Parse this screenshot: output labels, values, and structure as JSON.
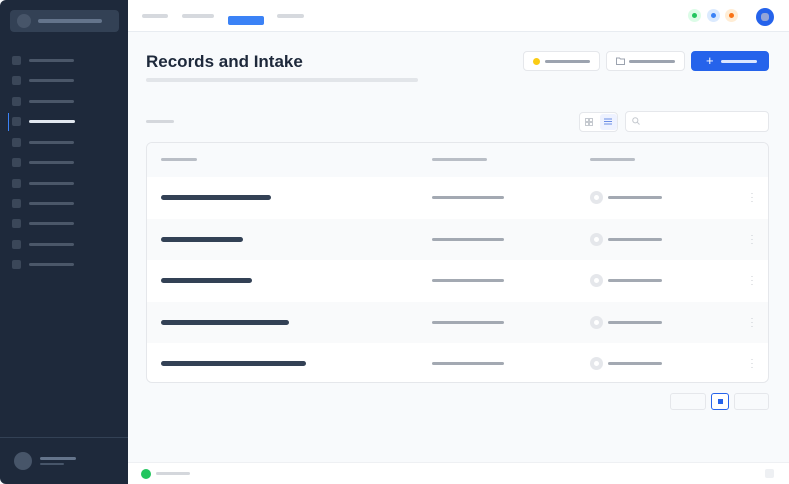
{
  "page": {
    "title": "Records and Intake"
  },
  "colors": {
    "sidebar": "#1e293b",
    "accent": "#2563eb",
    "status_green": "#22c55e",
    "status_blue": "#3b82f6",
    "status_orange": "#f97316",
    "filter_yellow": "#facc15"
  },
  "icons": {
    "add": "plus-icon",
    "folder": "folder-icon",
    "search": "search-icon",
    "grid": "grid-view-icon",
    "list": "list-view-icon",
    "more": "more-vertical-icon",
    "status_ok": "check-circle-icon"
  },
  "nav": {
    "active_index": 3,
    "item_count": 11
  },
  "table": {
    "row_count": 5
  },
  "pagination": {
    "current": 1
  }
}
